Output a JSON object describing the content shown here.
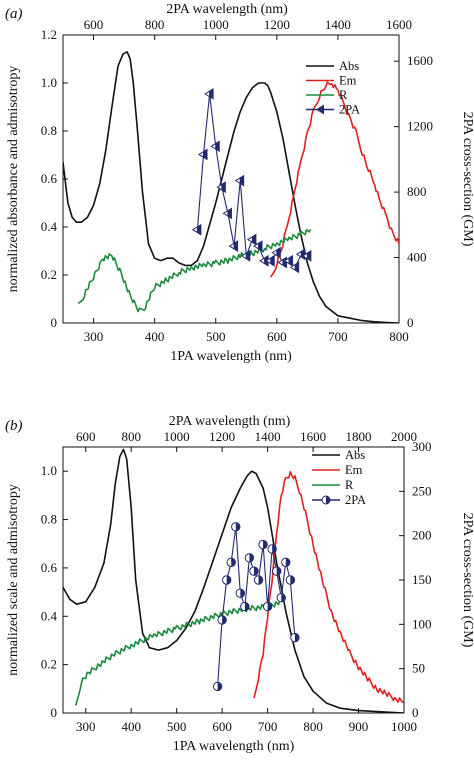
{
  "chart_data": [
    {
      "panel_label": "(a)",
      "type": "line",
      "xlabel": "1PA wavelength (nm)",
      "x2label": "2PA wavelength (nm)",
      "ylabel": "normalized absorbance and admisotropy",
      "y2label": "2PA cross-section (GM)",
      "xlim": [
        250,
        800
      ],
      "x2lim": [
        500,
        1600
      ],
      "ylim": [
        0,
        1.2
      ],
      "y2lim": [
        0,
        1760
      ],
      "x_ticks": [
        300,
        400,
        500,
        600,
        700,
        800
      ],
      "x2_ticks": [
        600,
        800,
        1000,
        1200,
        1400,
        1600
      ],
      "y_ticks": [
        0,
        0.2,
        0.4,
        0.6,
        0.8,
        1.0,
        1.2
      ],
      "y_tick_labels": [
        "0",
        "0.2",
        "0.4",
        "0.6",
        "0.8",
        "1.0",
        "1.2"
      ],
      "y2_ticks": [
        0,
        400,
        800,
        1200,
        1600
      ],
      "legend": [
        "Abs",
        "Em",
        "R",
        "2PA"
      ],
      "legend_position": "top-right",
      "series": [
        {
          "name": "Abs",
          "color": "#111111",
          "axis": "y",
          "x": [
            250,
            258,
            265,
            272,
            280,
            290,
            300,
            310,
            320,
            330,
            340,
            348,
            355,
            360,
            365,
            372,
            380,
            390,
            400,
            410,
            420,
            430,
            440,
            450,
            460,
            470,
            480,
            490,
            500,
            510,
            520,
            530,
            540,
            550,
            560,
            570,
            580,
            585,
            590,
            600,
            610,
            620,
            630,
            640,
            650,
            660,
            670,
            680,
            690,
            700,
            720,
            740,
            760,
            780,
            800
          ],
          "y": [
            0.67,
            0.5,
            0.44,
            0.42,
            0.42,
            0.44,
            0.49,
            0.58,
            0.72,
            0.9,
            1.07,
            1.12,
            1.13,
            1.1,
            1.0,
            0.8,
            0.55,
            0.33,
            0.27,
            0.26,
            0.27,
            0.27,
            0.25,
            0.24,
            0.24,
            0.26,
            0.32,
            0.41,
            0.5,
            0.6,
            0.7,
            0.8,
            0.88,
            0.94,
            0.98,
            1.0,
            1.0,
            0.99,
            0.96,
            0.88,
            0.77,
            0.63,
            0.49,
            0.36,
            0.25,
            0.17,
            0.11,
            0.07,
            0.05,
            0.03,
            0.02,
            0.01,
            0.005,
            0.002,
            0.0
          ]
        },
        {
          "name": "Em",
          "color": "#e0201e",
          "axis": "y",
          "x": [
            590,
            600,
            610,
            620,
            630,
            640,
            650,
            660,
            670,
            680,
            690,
            700,
            710,
            720,
            730,
            740,
            750,
            760,
            770,
            780,
            790,
            800
          ],
          "y": [
            0.18,
            0.25,
            0.33,
            0.44,
            0.56,
            0.68,
            0.79,
            0.88,
            0.95,
            0.99,
            1.0,
            0.97,
            0.91,
            0.85,
            0.79,
            0.71,
            0.64,
            0.58,
            0.5,
            0.44,
            0.37,
            0.33
          ]
        },
        {
          "name": "R",
          "color": "#1a8a3a",
          "axis": "y",
          "x": [
            275,
            285,
            300,
            315,
            330,
            345,
            360,
            375,
            385,
            400,
            420,
            440,
            460,
            480,
            500,
            520,
            540,
            560,
            580,
            600,
            620,
            640,
            655
          ],
          "y": [
            0.07,
            0.12,
            0.19,
            0.27,
            0.28,
            0.21,
            0.11,
            0.05,
            0.07,
            0.15,
            0.18,
            0.21,
            0.23,
            0.24,
            0.25,
            0.26,
            0.28,
            0.29,
            0.31,
            0.33,
            0.35,
            0.37,
            0.39
          ]
        },
        {
          "name": "2PA",
          "color": "#232a6e",
          "axis": "y2",
          "marker": "left-triangle-half",
          "x": [
            940,
            960,
            980,
            1000,
            1020,
            1040,
            1060,
            1080,
            1100,
            1120,
            1140,
            1160,
            1180,
            1200,
            1220,
            1240,
            1260,
            1280,
            1300
          ],
          "y": [
            570,
            1030,
            1400,
            1080,
            830,
            670,
            470,
            870,
            410,
            510,
            470,
            380,
            380,
            430,
            370,
            380,
            340,
            420,
            410
          ]
        }
      ]
    },
    {
      "panel_label": "(b)",
      "type": "line",
      "xlabel": "1PA wavelength (nm)",
      "x2label": "2PA wavelength (nm)",
      "ylabel": "normalized scale and admisotropy",
      "y2label": "2PA cross-section (GM)",
      "xlim": [
        250,
        1000
      ],
      "x2lim": [
        500,
        2000
      ],
      "ylim": [
        0,
        1.1
      ],
      "y2lim": [
        0,
        300
      ],
      "x_ticks": [
        300,
        400,
        500,
        600,
        700,
        800,
        900,
        1000
      ],
      "x2_ticks": [
        600,
        800,
        1000,
        1200,
        1400,
        1600,
        1800,
        2000
      ],
      "y_ticks": [
        0,
        0.2,
        0.4,
        0.6,
        0.8,
        1.0
      ],
      "y_tick_labels": [
        "0",
        "0.2",
        "0.4",
        "0.6",
        "0.8",
        "1.0"
      ],
      "y2_ticks": [
        0,
        50,
        100,
        150,
        200,
        250,
        300
      ],
      "legend": [
        "Abs",
        "Em",
        "R",
        "2PA"
      ],
      "legend_position": "top-right",
      "series": [
        {
          "name": "Abs",
          "color": "#111111",
          "axis": "y",
          "x": [
            250,
            265,
            280,
            300,
            320,
            340,
            355,
            365,
            375,
            383,
            390,
            400,
            410,
            425,
            440,
            460,
            480,
            500,
            520,
            540,
            560,
            580,
            600,
            620,
            640,
            655,
            665,
            675,
            690,
            700,
            710,
            720,
            740,
            760,
            780,
            800,
            830,
            860,
            900,
            950,
            1000
          ],
          "y": [
            0.52,
            0.47,
            0.45,
            0.46,
            0.52,
            0.62,
            0.78,
            0.95,
            1.06,
            1.09,
            1.05,
            0.85,
            0.55,
            0.33,
            0.27,
            0.26,
            0.27,
            0.3,
            0.35,
            0.42,
            0.52,
            0.63,
            0.74,
            0.85,
            0.93,
            0.98,
            1.0,
            0.99,
            0.93,
            0.85,
            0.74,
            0.62,
            0.42,
            0.26,
            0.15,
            0.09,
            0.04,
            0.02,
            0.01,
            0.005,
            0.0
          ]
        },
        {
          "name": "Em",
          "color": "#e0201e",
          "axis": "y",
          "x": [
            670,
            690,
            710,
            720,
            730,
            740,
            750,
            760,
            770,
            780,
            800,
            820,
            840,
            860,
            880,
            900,
            920,
            940,
            960,
            980,
            1000
          ],
          "y": [
            0.05,
            0.25,
            0.55,
            0.75,
            0.9,
            0.97,
            0.99,
            0.97,
            0.92,
            0.85,
            0.7,
            0.55,
            0.42,
            0.33,
            0.25,
            0.19,
            0.14,
            0.1,
            0.08,
            0.06,
            0.05
          ]
        },
        {
          "name": "R",
          "color": "#1a8a3a",
          "axis": "y",
          "x": [
            278,
            290,
            310,
            330,
            360,
            400,
            450,
            500,
            550,
            600,
            650,
            700,
            730
          ],
          "y": [
            0.02,
            0.13,
            0.17,
            0.2,
            0.24,
            0.28,
            0.32,
            0.35,
            0.38,
            0.41,
            0.43,
            0.44,
            0.46
          ]
        },
        {
          "name": "2PA",
          "color": "#232a6e",
          "axis": "y2",
          "marker": "circle-half",
          "x": [
            1180,
            1200,
            1220,
            1240,
            1260,
            1280,
            1300,
            1320,
            1340,
            1360,
            1380,
            1400,
            1420,
            1440,
            1460,
            1480,
            1500,
            1520
          ],
          "y": [
            30,
            105,
            150,
            170,
            210,
            135,
            120,
            175,
            160,
            150,
            190,
            120,
            185,
            160,
            130,
            170,
            150,
            85
          ]
        }
      ]
    }
  ]
}
